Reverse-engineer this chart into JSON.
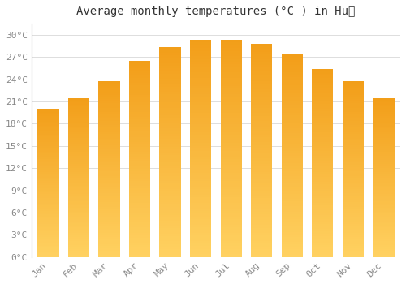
{
  "title": "Average monthly temperatures (°C ) in Huế",
  "months": [
    "Jan",
    "Feb",
    "Mar",
    "Apr",
    "May",
    "Jun",
    "Jul",
    "Aug",
    "Sep",
    "Oct",
    "Nov",
    "Dec"
  ],
  "temperatures": [
    20.0,
    21.4,
    23.7,
    26.5,
    28.3,
    29.3,
    29.3,
    28.8,
    27.3,
    25.4,
    23.7,
    21.4
  ],
  "yticks": [
    0,
    3,
    6,
    9,
    12,
    15,
    18,
    21,
    24,
    27,
    30
  ],
  "ylim": [
    0,
    31.5
  ],
  "bar_color_top": "#F5A623",
  "bar_color_bottom": "#FFD060",
  "background_color": "#FFFFFF",
  "grid_color": "#DDDDDD",
  "title_fontsize": 10,
  "tick_fontsize": 8,
  "font_color": "#888888",
  "bar_width": 0.7
}
